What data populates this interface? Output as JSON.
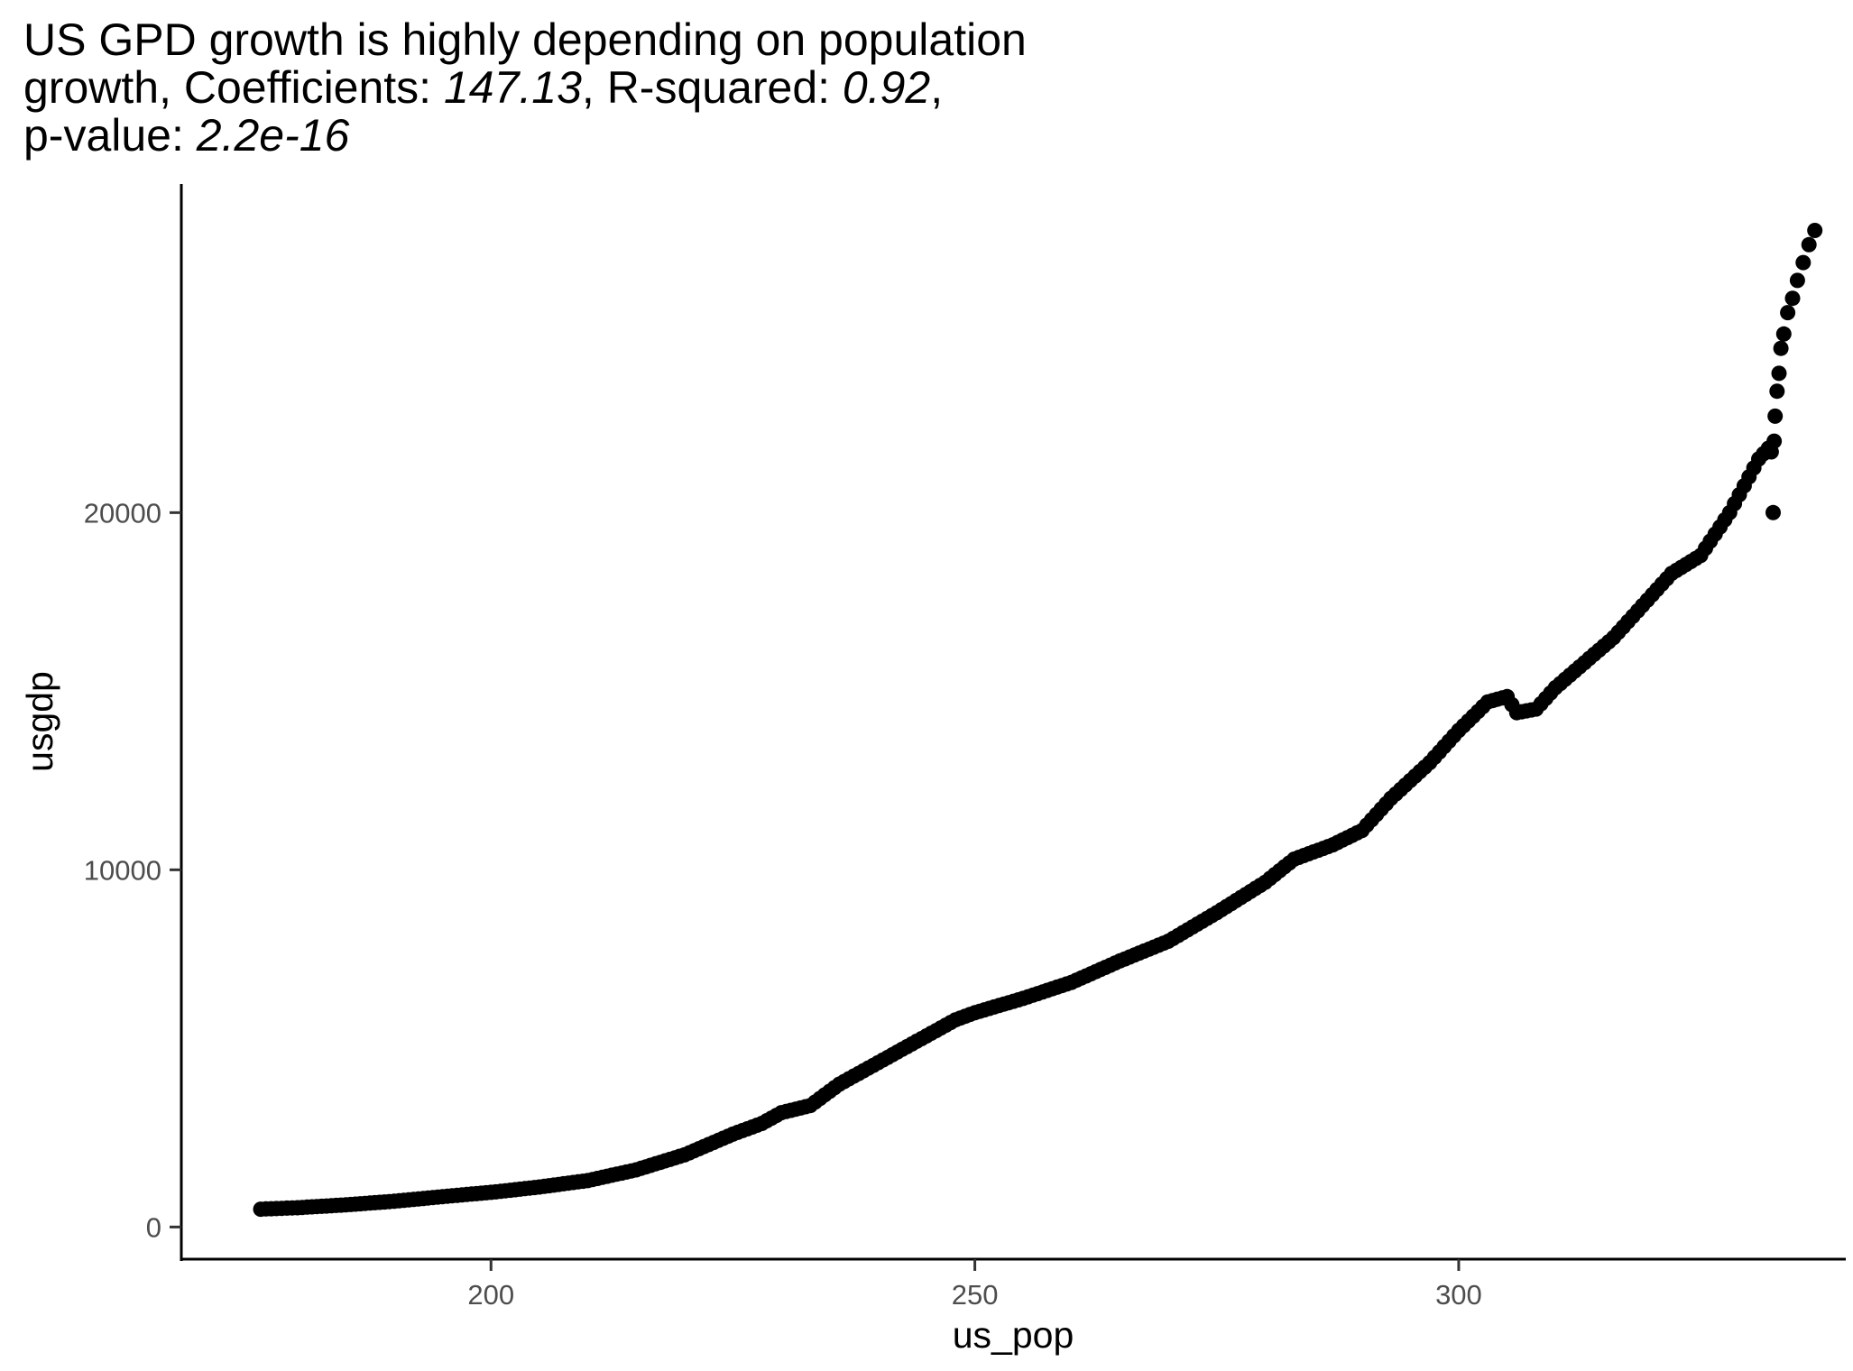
{
  "chart_data": {
    "type": "scatter",
    "title": {
      "line1": "US GPD growth is highly depending on population",
      "line2_prefix": "growth, Coefficients: ",
      "coefficient": "147.13",
      "line2_mid": ", R-squared: ",
      "r_squared": "0.92",
      "line2_suffix": ",",
      "line3_prefix": "p-value: ",
      "p_value": "2.2e-16"
    },
    "xlabel": "us_pop",
    "ylabel": "usgdp",
    "xlim": [
      168,
      340
    ],
    "ylim": [
      -900,
      29200
    ],
    "x_ticks": [
      200,
      250,
      300
    ],
    "x_tick_labels": [
      "200",
      "250",
      "300"
    ],
    "y_ticks": [
      0,
      10000,
      20000
    ],
    "y_tick_labels": [
      "0",
      "10000",
      "20000"
    ],
    "grid": false,
    "legend": "none",
    "point_color": "#000000",
    "anchors": [
      [
        176.2,
        500
      ],
      [
        180,
        540
      ],
      [
        185,
        620
      ],
      [
        190,
        720
      ],
      [
        195,
        850
      ],
      [
        200,
        970
      ],
      [
        205,
        1120
      ],
      [
        210,
        1300
      ],
      [
        215,
        1600
      ],
      [
        220,
        2020
      ],
      [
        225,
        2600
      ],
      [
        228,
        2900
      ],
      [
        230,
        3200
      ],
      [
        233,
        3400
      ],
      [
        236,
        4000
      ],
      [
        240,
        4600
      ],
      [
        244,
        5200
      ],
      [
        248,
        5800
      ],
      [
        250,
        6000
      ],
      [
        255,
        6400
      ],
      [
        260,
        6850
      ],
      [
        265,
        7450
      ],
      [
        270,
        8000
      ],
      [
        275,
        8800
      ],
      [
        280,
        9650
      ],
      [
        283,
        10300
      ],
      [
        287,
        10700
      ],
      [
        290,
        11100
      ],
      [
        293,
        12000
      ],
      [
        297,
        13000
      ],
      [
        300,
        13900
      ],
      [
        303,
        14700
      ],
      [
        305,
        14850
      ],
      [
        306,
        14400
      ],
      [
        308,
        14500
      ],
      [
        310,
        15100
      ],
      [
        313,
        15800
      ],
      [
        316,
        16500
      ],
      [
        319,
        17400
      ],
      [
        322,
        18300
      ],
      [
        325,
        18800
      ],
      [
        328,
        20000
      ],
      [
        331,
        21500
      ],
      [
        332,
        21800
      ]
    ],
    "extra_points": [
      [
        332.5,
        20000
      ],
      [
        332.3,
        21700
      ],
      [
        332.6,
        22000
      ],
      [
        332.7,
        22700
      ],
      [
        332.9,
        23400
      ],
      [
        333.1,
        23900
      ],
      [
        333.3,
        24600
      ],
      [
        333.6,
        25000
      ],
      [
        334.0,
        25600
      ],
      [
        334.5,
        26000
      ],
      [
        335.0,
        26500
      ],
      [
        335.6,
        27000
      ],
      [
        336.2,
        27500
      ],
      [
        336.8,
        27900
      ]
    ]
  }
}
